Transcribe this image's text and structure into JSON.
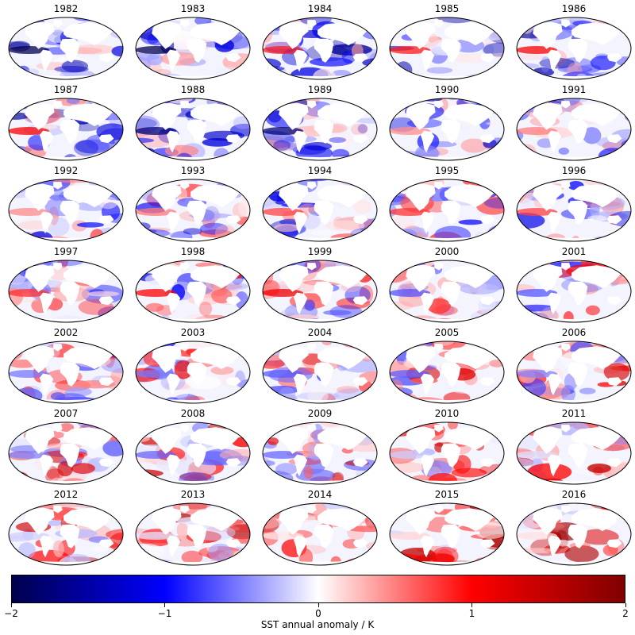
{
  "years": [
    "1982",
    "1983",
    "1984",
    "1985",
    "1986",
    "1987",
    "1988",
    "1989",
    "1990",
    "1991",
    "1992",
    "1993",
    "1994",
    "1995",
    "1996",
    "1997",
    "1998",
    "1999",
    "2000",
    "2001",
    "2002",
    "2003",
    "2004",
    "2005",
    "2006",
    "2007",
    "2008",
    "2009",
    "2010",
    "2011",
    "2012",
    "2013",
    "2014",
    "2015",
    "2016"
  ],
  "map_projection": "Mollweide",
  "colorbar": {
    "label": "SST annual anomaly / K",
    "min": -2,
    "max": 2,
    "ticks": [
      "−2",
      "−1",
      "0",
      "1",
      "2"
    ],
    "colormap": "seismic",
    "colors": {
      "low": "#00004d",
      "mid_low": "#0000ff",
      "center": "#ffffff",
      "mid_high": "#ff0000",
      "high": "#800000"
    }
  },
  "land_color": "#ffffff"
}
